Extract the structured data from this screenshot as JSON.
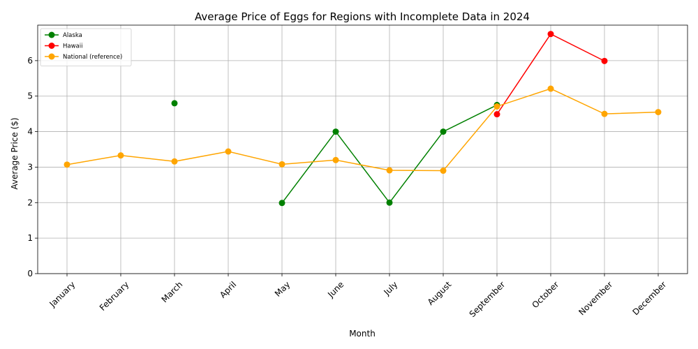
{
  "chart_data": {
    "type": "line",
    "title": "Average Price of Eggs for Regions with Incomplete Data in 2024",
    "xlabel": "Month",
    "ylabel": "Average Price ($)",
    "categories": [
      "January",
      "February",
      "March",
      "April",
      "May",
      "June",
      "July",
      "August",
      "September",
      "October",
      "November",
      "December"
    ],
    "ylim": [
      0,
      7
    ],
    "yticks": [
      0,
      1,
      2,
      3,
      4,
      5,
      6
    ],
    "grid": true,
    "legend_position": "upper-left",
    "series": [
      {
        "name": "Alaska",
        "color": "#008000",
        "values": [
          null,
          null,
          4.8,
          null,
          1.99,
          4.0,
          2.0,
          4.0,
          4.75,
          null,
          null,
          null
        ]
      },
      {
        "name": "Hawaii",
        "color": "#ff0000",
        "values": [
          null,
          null,
          null,
          null,
          null,
          null,
          null,
          null,
          4.49,
          6.75,
          5.99,
          null
        ]
      },
      {
        "name": "National (reference)",
        "color": "#ffa500",
        "values": [
          3.07,
          3.33,
          3.16,
          3.44,
          3.08,
          3.2,
          2.91,
          2.9,
          4.71,
          5.21,
          4.5,
          4.55
        ]
      }
    ]
  }
}
